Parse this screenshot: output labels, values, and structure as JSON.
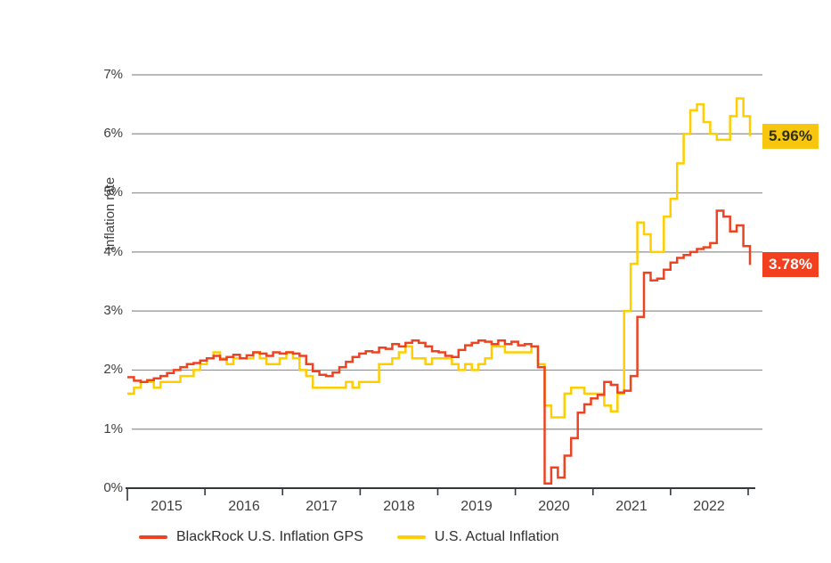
{
  "chart_data": {
    "type": "line",
    "line_style": "step-after",
    "title": "",
    "ylabel": "Inflation rate",
    "xlabel": "",
    "x_tick_labels": [
      "2015",
      "2016",
      "2017",
      "2018",
      "2019",
      "2020",
      "2021",
      "2022"
    ],
    "y_tick_labels": [
      "7%",
      "6%",
      "5%",
      "4%",
      "3%",
      "2%",
      "1%",
      "0%"
    ],
    "ylim": [
      0,
      7
    ],
    "x_range": [
      "2015-01",
      "2022-11"
    ],
    "x_frequency": "monthly",
    "grid": true,
    "legend_position": "bottom",
    "axis_color": "#33383d",
    "grid_color": "#909090",
    "label_color": "#3d3d3d",
    "series": [
      {
        "name": "BlackRock U.S. Inflation GPS",
        "color": "#ee4323",
        "end_label": "3.78%",
        "end_label_bg": "#f23f1d",
        "end_label_fg": "#ffffff",
        "values": [
          1.88,
          1.82,
          1.8,
          1.83,
          1.86,
          1.9,
          1.95,
          2.0,
          2.05,
          2.1,
          2.12,
          2.16,
          2.2,
          2.24,
          2.18,
          2.22,
          2.26,
          2.2,
          2.25,
          2.3,
          2.28,
          2.24,
          2.3,
          2.28,
          2.3,
          2.28,
          2.24,
          2.1,
          1.98,
          1.92,
          1.9,
          1.96,
          2.05,
          2.14,
          2.22,
          2.28,
          2.32,
          2.3,
          2.38,
          2.36,
          2.44,
          2.4,
          2.46,
          2.5,
          2.46,
          2.4,
          2.32,
          2.3,
          2.24,
          2.22,
          2.34,
          2.42,
          2.46,
          2.5,
          2.48,
          2.44,
          2.5,
          2.44,
          2.48,
          2.42,
          2.44,
          2.4,
          2.05,
          0.08,
          0.35,
          0.18,
          0.55,
          0.85,
          1.28,
          1.42,
          1.52,
          1.58,
          1.8,
          1.75,
          1.62,
          1.65,
          1.9,
          2.9,
          3.65,
          3.52,
          3.55,
          3.7,
          3.82,
          3.9,
          3.95,
          4.0,
          4.05,
          4.08,
          4.15,
          4.7,
          4.6,
          4.35,
          4.45,
          4.1,
          3.78
        ]
      },
      {
        "name": "U.S. Actual Inflation",
        "color": "#ffce00",
        "end_label": "5.96%",
        "end_label_bg": "#f7c60e",
        "end_label_fg": "#2f2f12",
        "values": [
          1.6,
          1.7,
          1.8,
          1.8,
          1.7,
          1.8,
          1.8,
          1.8,
          1.9,
          1.9,
          2.0,
          2.1,
          2.2,
          2.3,
          2.2,
          2.1,
          2.2,
          2.2,
          2.2,
          2.3,
          2.2,
          2.1,
          2.1,
          2.2,
          2.3,
          2.2,
          2.0,
          1.9,
          1.7,
          1.7,
          1.7,
          1.7,
          1.7,
          1.8,
          1.7,
          1.8,
          1.8,
          1.8,
          2.1,
          2.1,
          2.2,
          2.3,
          2.4,
          2.2,
          2.2,
          2.1,
          2.2,
          2.2,
          2.2,
          2.1,
          2.0,
          2.1,
          2.0,
          2.1,
          2.2,
          2.4,
          2.4,
          2.3,
          2.3,
          2.3,
          2.3,
          2.4,
          2.1,
          1.4,
          1.2,
          1.2,
          1.6,
          1.7,
          1.7,
          1.6,
          1.6,
          1.6,
          1.4,
          1.3,
          1.6,
          3.0,
          3.8,
          4.5,
          4.3,
          4.0,
          4.0,
          4.6,
          4.9,
          5.5,
          6.0,
          6.4,
          6.5,
          6.2,
          6.0,
          5.9,
          5.9,
          6.3,
          6.6,
          6.3,
          5.96
        ]
      }
    ]
  }
}
